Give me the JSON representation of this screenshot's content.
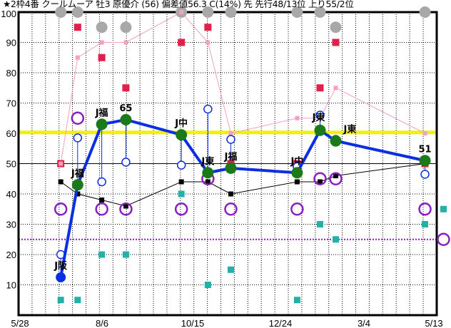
{
  "chart_data": {
    "type": "scatter",
    "title": "★2枠4番 クールムーア 牡3 原優介 (56) 偏差値56.3 C(14%) 先 先行48/13位 上り55/2位",
    "ylim": [
      0,
      100
    ],
    "yticks": [
      10,
      20,
      30,
      40,
      50,
      60,
      70,
      80,
      90,
      100
    ],
    "xtick_labels": [
      "5/28",
      "8/6",
      "10/15",
      "12/24",
      "3/4",
      "5/13"
    ],
    "grid": true,
    "reference_lines": [
      {
        "value": 60.3,
        "color": "#f2f200"
      },
      {
        "value": 50,
        "color": "#000000"
      },
      {
        "value": 25,
        "color": "#9020b0"
      }
    ],
    "x": [
      "7/2",
      "7/16",
      "8/5",
      "8/25",
      "10/10",
      "11/1",
      "11/20",
      "1/14",
      "2/2",
      "2/15",
      "4/30"
    ],
    "labels": [
      "J阪",
      "J福",
      "J福",
      "65",
      "J中",
      "J東",
      "J福",
      "J中",
      "J東",
      "J東",
      "51"
    ],
    "series": [
      {
        "key": "main",
        "color": "#0a2ee0",
        "values": [
          12.5,
          43,
          63,
          64.5,
          59.5,
          47,
          48.5,
          47,
          61,
          57.5,
          51
        ]
      },
      {
        "key": "open",
        "color": "#0a2ee0",
        "values": [
          20,
          58.5,
          44,
          50.5,
          49.5,
          68,
          58,
          49,
          66,
          58,
          46.5
        ]
      },
      {
        "key": "gray",
        "color": "#a8a8a8",
        "values": [
          100,
          100,
          95,
          95,
          100,
          100,
          100,
          100,
          100,
          95,
          100
        ]
      },
      {
        "key": "red",
        "color": "#e0204a",
        "values": [
          50,
          95,
          85,
          75,
          90,
          95,
          50,
          50,
          75,
          90,
          50
        ]
      },
      {
        "key": "pink",
        "color": "#f2a0c4",
        "values": [
          50,
          85,
          90,
          90,
          100,
          90,
          60,
          65,
          65,
          75,
          60
        ]
      },
      {
        "key": "black",
        "color": "#000000",
        "values": [
          44,
          40,
          38,
          36,
          44,
          44,
          40,
          44,
          44,
          46,
          50
        ]
      },
      {
        "key": "purple",
        "color": "#8a20c0",
        "values": [
          35,
          65,
          35,
          35,
          35,
          45,
          35,
          35,
          45,
          45,
          35
        ]
      },
      {
        "key": "teal",
        "color": "#22b0a8",
        "values": [
          5,
          5,
          20,
          20,
          40,
          10,
          15,
          5,
          30,
          25,
          30
        ]
      }
    ],
    "next": {
      "x": "5/13",
      "teal": 35,
      "purple": 25
    }
  }
}
